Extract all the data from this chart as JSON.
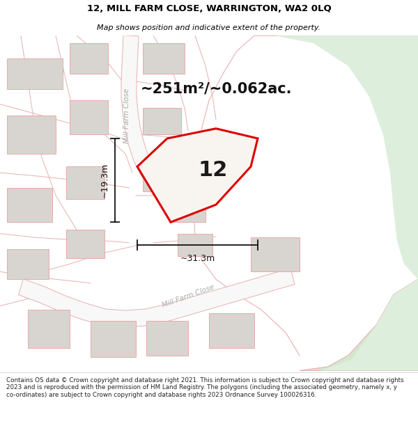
{
  "title_line1": "12, MILL FARM CLOSE, WARRINGTON, WA2 0LQ",
  "title_line2": "Map shows position and indicative extent of the property.",
  "area_label": "~251m²/~0.062ac.",
  "plot_number": "12",
  "dim_vertical": "~19.3m",
  "dim_horizontal": "~31.3m",
  "road_label_1": "Mill Farm Close",
  "road_label_2": "Mill Farm Close",
  "footer_text": "Contains OS data © Crown copyright and database right 2021. This information is subject to Crown copyright and database rights 2023 and is reproduced with the permission of HM Land Registry. The polygons (including the associated geometry, namely x, y co-ordinates) are subject to Crown copyright and database rights 2023 Ordnance Survey 100026316.",
  "map_bg": "#f5f0ec",
  "white_area": "#ffffff",
  "green_area_color": "#d4e6cc",
  "green_area_color2": "#ddeedd",
  "building_color": "#d8d5d0",
  "building_edge": "#e8a0a0",
  "plot_fill": "#f8f5f0",
  "plot_outline": "#dd0000",
  "road_line_color": "#e8b0b0",
  "road_fill": "#f8f8f8",
  "footer_bg": "#ffffff",
  "title_bg": "#ffffff",
  "dim_color": "#111111",
  "road_text_color": "#aaaaaa"
}
